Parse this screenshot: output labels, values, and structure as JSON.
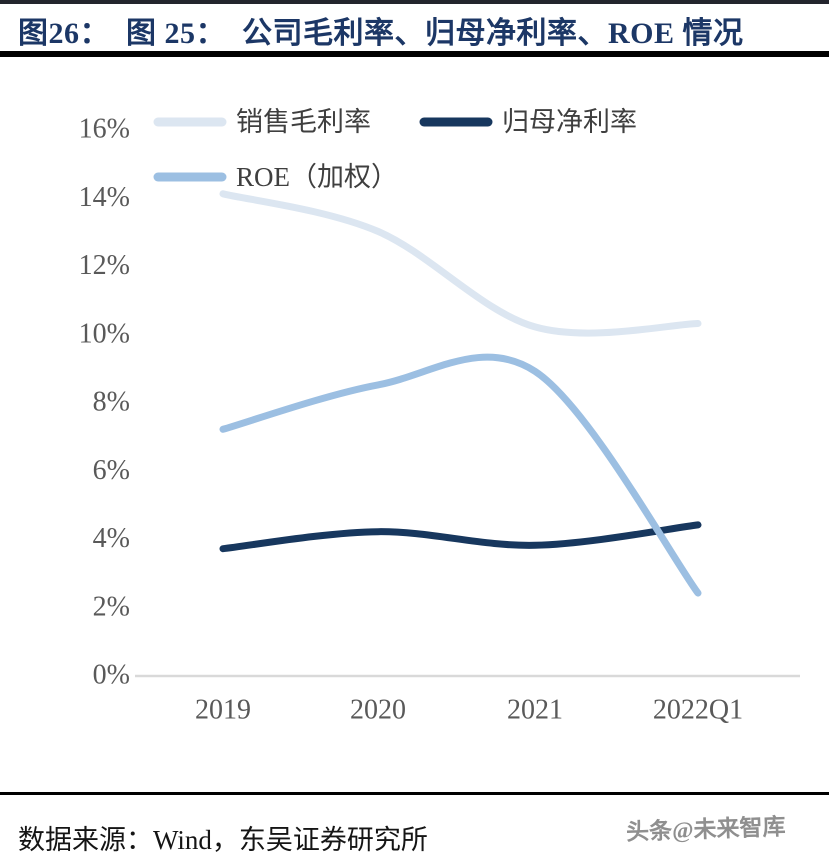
{
  "header": {
    "title": "图26：  图 25：  公司毛利率、归母净利率、ROE 情况"
  },
  "footer": {
    "source": "数据来源：Wind，东吴证券研究所",
    "watermark": "头条@未来智库"
  },
  "chart_data": {
    "type": "line",
    "smooth": true,
    "title": "公司毛利率、归母净利率、ROE 情况",
    "categories": [
      "2019",
      "2020",
      "2021",
      "2022Q1"
    ],
    "series": [
      {
        "name": "销售毛利率",
        "color": "#dce6f1",
        "values": [
          14.1,
          13.0,
          10.2,
          10.3
        ]
      },
      {
        "name": "归母净利率",
        "color": "#17375e",
        "values": [
          3.7,
          4.2,
          3.8,
          4.4
        ]
      },
      {
        "name": "ROE（加权）",
        "color": "#9cbfe2",
        "values": [
          7.2,
          8.5,
          8.9,
          2.4
        ]
      }
    ],
    "ylim": [
      0,
      16
    ],
    "ytick_step": 2,
    "yticks": [
      "0%",
      "2%",
      "4%",
      "6%",
      "8%",
      "10%",
      "12%",
      "14%",
      "16%"
    ],
    "xlabel": "",
    "ylabel": "",
    "grid": false,
    "legend_position": "top-left",
    "axis_color": "#d9d9d9",
    "tick_label_color": "#595959",
    "legend_label_color": "#3f3f3f"
  }
}
